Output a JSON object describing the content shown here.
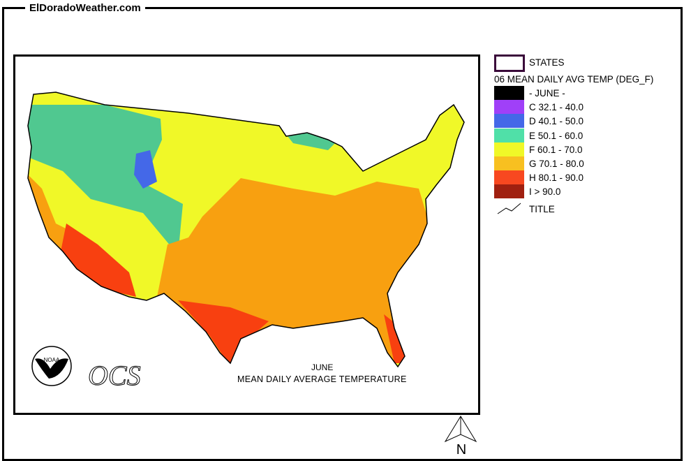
{
  "site_title": "ElDoradoWeather.com",
  "legend": {
    "states_label": "STATES",
    "heading": "06 MEAN DAILY AVG TEMP (DEG_F)",
    "classes": [
      {
        "label": "- JUNE -",
        "color": "#000000"
      },
      {
        "label": "C 32.1 - 40.0",
        "color": "#a040f8"
      },
      {
        "label": "D 40.1 - 50.0",
        "color": "#4468e8"
      },
      {
        "label": "E 50.1 - 60.0",
        "color": "#50e0a8"
      },
      {
        "label": "F 60.1 - 70.0",
        "color": "#f0f828"
      },
      {
        "label": "G 70.1 - 80.0",
        "color": "#f8c020"
      },
      {
        "label": "H 80.1 - 90.0",
        "color": "#f84820"
      },
      {
        "label": "I > 90.0",
        "color": "#a02010"
      }
    ],
    "title_label": "TITLE"
  },
  "map": {
    "title_line1": "JUNE",
    "title_line2": "MEAN DAILY AVERAGE TEMPERATURE",
    "logo_noaa": "NOAA",
    "logo_ocs": "OCS",
    "north_label": "N"
  }
}
